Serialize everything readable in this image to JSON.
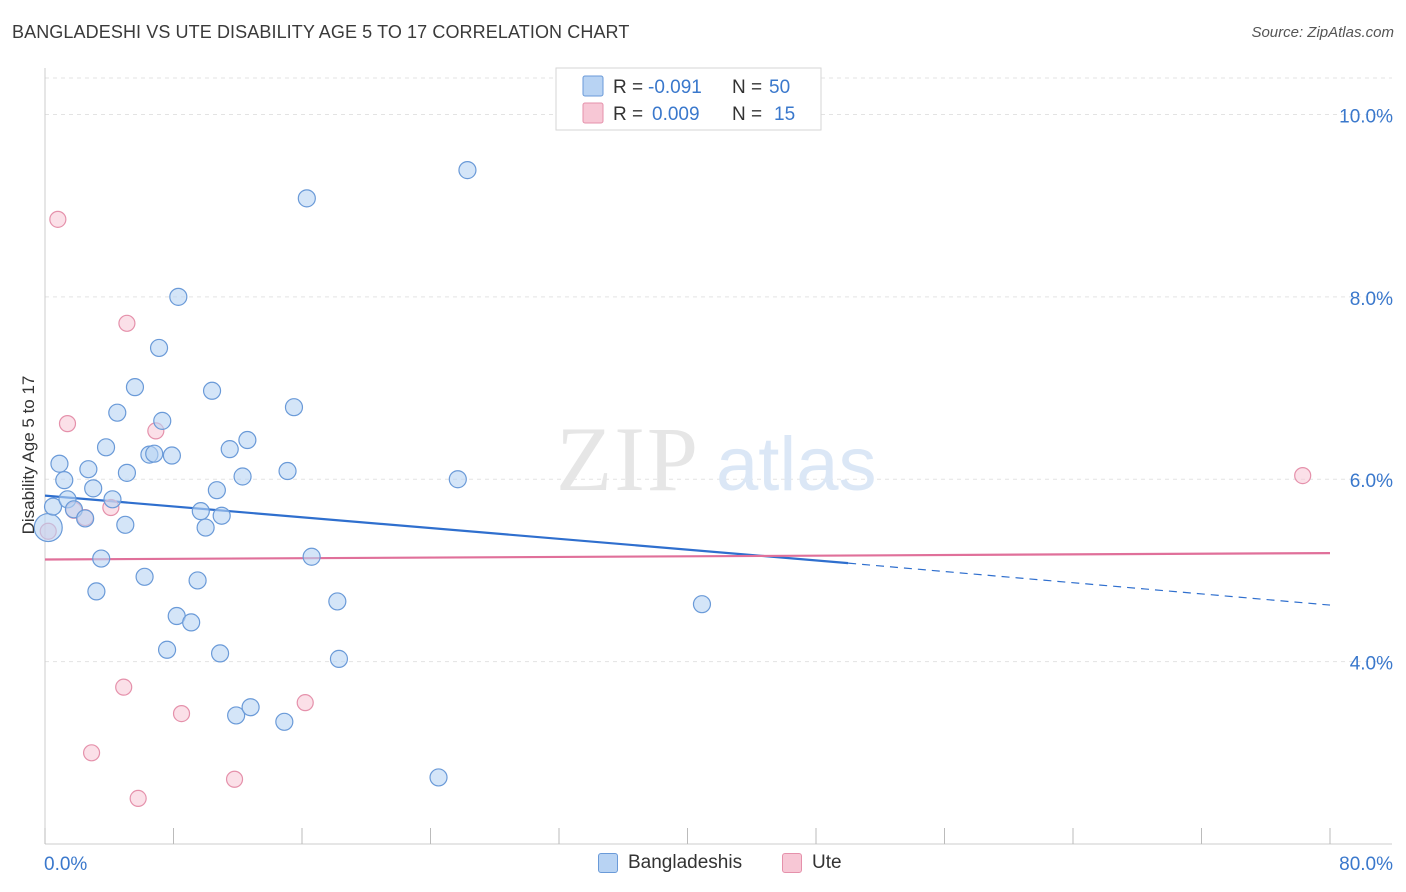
{
  "title": "BANGLADESHI VS UTE DISABILITY AGE 5 TO 17 CORRELATION CHART",
  "source": "Source: ZipAtlas.com",
  "colors": {
    "blue_fill": "#b8d3f3",
    "blue_stroke": "#6a9ad8",
    "blue_line": "#2f6fce",
    "pink_fill": "#f7c7d5",
    "pink_stroke": "#e591ab",
    "pink_line": "#e0709a",
    "tick_label": "#3a78cc",
    "grid": "#e3e3e3"
  },
  "watermark": {
    "zip": "ZIP",
    "atlas": "atlas"
  },
  "legend": {
    "r_label": "R =",
    "n_label": "N =",
    "entries": [
      {
        "r": "-0.091",
        "n": "50"
      },
      {
        "r": "0.009",
        "n": "15"
      }
    ]
  },
  "chart_data": {
    "type": "scatter",
    "title": "BANGLADESHI VS UTE DISABILITY AGE 5 TO 17 CORRELATION CHART",
    "xlabel": "",
    "ylabel": "Disability Age 5 to 17",
    "xlim": [
      0,
      80
    ],
    "ylim": [
      2.0,
      10.4
    ],
    "x_tick_labels": [
      "0.0%",
      "80.0%"
    ],
    "y_ticks": [
      4.0,
      6.0,
      8.0,
      10.0
    ],
    "y_tick_labels": [
      "4.0%",
      "6.0%",
      "8.0%",
      "10.0%"
    ],
    "grid": true,
    "legend_position": "top-center",
    "series": [
      {
        "name": "Bangladeshis",
        "points": [
          [
            0.2,
            5.47
          ],
          [
            0.5,
            5.7
          ],
          [
            0.9,
            6.17
          ],
          [
            1.2,
            5.99
          ],
          [
            1.4,
            5.78
          ],
          [
            1.8,
            5.67
          ],
          [
            2.5,
            5.57
          ],
          [
            2.7,
            6.11
          ],
          [
            3.2,
            4.77
          ],
          [
            3.5,
            5.13
          ],
          [
            3.8,
            6.35
          ],
          [
            4.2,
            5.78
          ],
          [
            4.5,
            6.73
          ],
          [
            5.1,
            6.07
          ],
          [
            5.6,
            7.01
          ],
          [
            6.2,
            4.93
          ],
          [
            6.5,
            6.27
          ],
          [
            6.8,
            6.28
          ],
          [
            7.1,
            7.44
          ],
          [
            7.3,
            6.64
          ],
          [
            7.6,
            4.13
          ],
          [
            7.9,
            6.26
          ],
          [
            8.2,
            4.5
          ],
          [
            8.3,
            8.0
          ],
          [
            9.1,
            4.43
          ],
          [
            9.5,
            4.89
          ],
          [
            9.7,
            5.65
          ],
          [
            10.0,
            5.47
          ],
          [
            10.4,
            6.97
          ],
          [
            10.7,
            5.88
          ],
          [
            10.9,
            4.09
          ],
          [
            11.5,
            6.33
          ],
          [
            11.9,
            3.41
          ],
          [
            12.3,
            6.03
          ],
          [
            12.6,
            6.43
          ],
          [
            12.8,
            3.5
          ],
          [
            14.9,
            3.34
          ],
          [
            15.1,
            6.09
          ],
          [
            15.5,
            6.79
          ],
          [
            16.3,
            9.08
          ],
          [
            16.6,
            5.15
          ],
          [
            18.2,
            4.66
          ],
          [
            18.3,
            4.03
          ],
          [
            24.5,
            2.73
          ],
          [
            25.7,
            6.0
          ],
          [
            26.3,
            9.39
          ],
          [
            40.9,
            4.63
          ],
          [
            5.0,
            5.5
          ],
          [
            11.0,
            5.6
          ],
          [
            3.0,
            5.9
          ]
        ]
      },
      {
        "name": "Ute",
        "points": [
          [
            0.2,
            5.43
          ],
          [
            0.8,
            8.85
          ],
          [
            1.4,
            6.61
          ],
          [
            1.8,
            5.66
          ],
          [
            2.5,
            5.58
          ],
          [
            2.9,
            3.0
          ],
          [
            4.1,
            5.69
          ],
          [
            4.9,
            3.72
          ],
          [
            5.1,
            7.71
          ],
          [
            5.8,
            2.5
          ],
          [
            6.9,
            6.53
          ],
          [
            8.5,
            3.43
          ],
          [
            11.8,
            2.71
          ],
          [
            16.2,
            3.55
          ],
          [
            78.3,
            6.04
          ]
        ]
      }
    ],
    "trend_lines": [
      {
        "series": "Bangladeshis",
        "from": [
          0,
          5.82
        ],
        "to": [
          50,
          5.08
        ],
        "dashed_to": [
          80,
          4.62
        ]
      },
      {
        "series": "Ute",
        "from": [
          0,
          5.12
        ],
        "to": [
          80,
          5.19
        ]
      }
    ]
  }
}
